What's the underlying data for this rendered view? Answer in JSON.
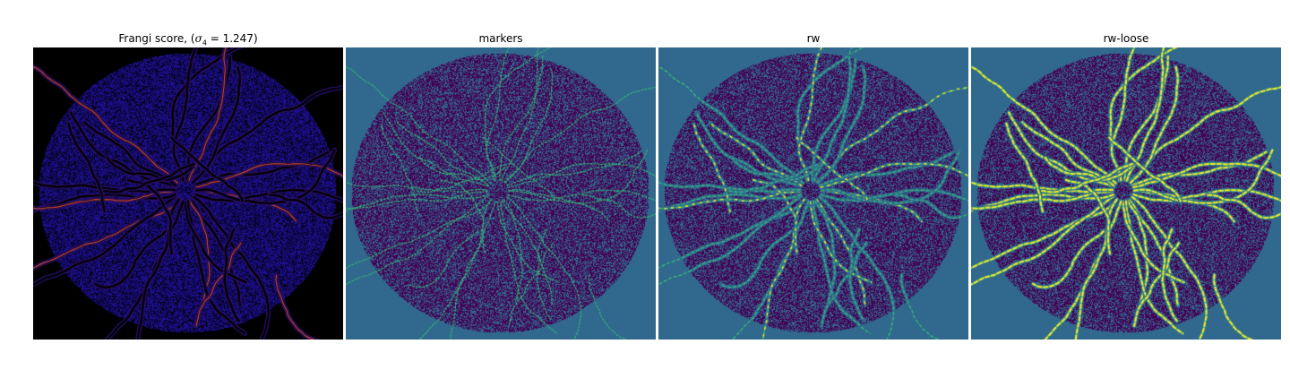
{
  "figure": {
    "panels": [
      {
        "id": "frangi",
        "title_prefix": "Frangi score, (",
        "title_sigma": "σ",
        "title_sub": "4",
        "title_suffix": " = 1.247)",
        "colormap": "plasma-like",
        "background": "#000000",
        "body_color": "#1d0f8f",
        "highlight_color": "#d84a4f"
      },
      {
        "id": "markers",
        "title": "markers",
        "colormap": "viridis",
        "background": "#31688e",
        "body_color": "#440154",
        "highlight_color": "#35b779"
      },
      {
        "id": "rw",
        "title": "rw",
        "colormap": "viridis",
        "background": "#31688e",
        "body_color": "#440154",
        "highlight_color": "#fde725"
      },
      {
        "id": "rw-loose",
        "title": "rw-loose",
        "colormap": "viridis",
        "background": "#31688e",
        "body_color": "#440154",
        "highlight_color": "#fde725"
      }
    ]
  }
}
